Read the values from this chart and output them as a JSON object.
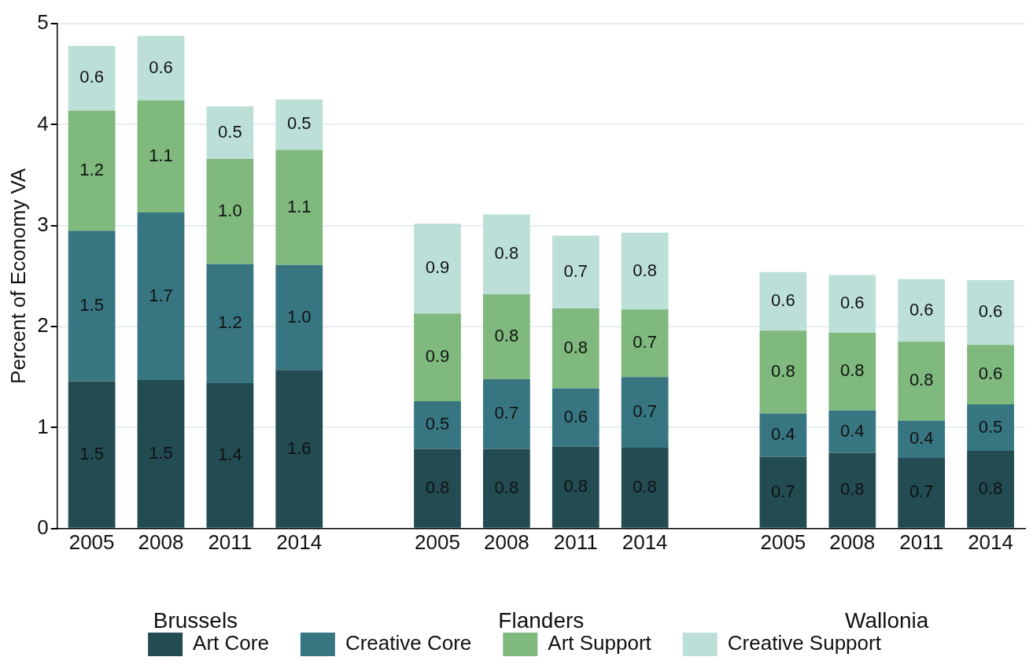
{
  "chart_data": {
    "type": "bar",
    "stacked": true,
    "ylabel": "Percent of Economy VA",
    "categories": [
      "2005",
      "2008",
      "2011",
      "2014",
      null,
      "2005",
      "2008",
      "2011",
      "2014",
      null,
      "2005",
      "2008",
      "2011",
      "2014"
    ],
    "ylim": [
      0,
      5
    ],
    "yticks": [
      0,
      1,
      2,
      3,
      4,
      5
    ],
    "grid": "y",
    "legend": "bottom",
    "annotations": [
      "Brussels",
      "Flanders",
      "Wallonia"
    ],
    "series": [
      {
        "name": "Art Core",
        "color": "#234b52",
        "values": [
          1.46,
          1.47,
          1.44,
          1.57,
          null,
          0.79,
          0.79,
          0.81,
          0.8,
          null,
          0.71,
          0.75,
          0.7,
          0.77
        ],
        "value_labels": [
          "1.5",
          "1.5",
          "1.4",
          "1.6",
          null,
          "0.8",
          "0.8",
          "0.8",
          "0.8",
          null,
          "0.7",
          "0.8",
          "0.7",
          "0.8"
        ]
      },
      {
        "name": "Creative Core",
        "color": "#377680",
        "values": [
          1.49,
          1.66,
          1.18,
          1.04,
          null,
          0.47,
          0.69,
          0.58,
          0.7,
          null,
          0.43,
          0.42,
          0.37,
          0.46
        ],
        "value_labels": [
          "1.5",
          "1.7",
          "1.2",
          "1.0",
          null,
          "0.5",
          "0.7",
          "0.6",
          "0.7",
          null,
          "0.4",
          "0.4",
          "0.4",
          "0.5"
        ]
      },
      {
        "name": "Art Support",
        "color": "#7fb97d",
        "values": [
          1.19,
          1.11,
          1.04,
          1.14,
          null,
          0.87,
          0.84,
          0.79,
          0.67,
          null,
          0.82,
          0.77,
          0.78,
          0.59
        ],
        "value_labels": [
          "1.2",
          "1.1",
          "1.0",
          "1.1",
          null,
          "0.9",
          "0.8",
          "0.8",
          "0.7",
          null,
          "0.8",
          "0.8",
          "0.8",
          "0.6"
        ]
      },
      {
        "name": "Creative Support",
        "color": "#bce0d8",
        "values": [
          0.64,
          0.64,
          0.52,
          0.5,
          null,
          0.89,
          0.79,
          0.72,
          0.76,
          null,
          0.58,
          0.57,
          0.62,
          0.64
        ],
        "value_labels": [
          "0.6",
          "0.6",
          "0.5",
          "0.5",
          null,
          "0.9",
          "0.8",
          "0.7",
          "0.8",
          null,
          "0.6",
          "0.6",
          "0.6",
          "0.6"
        ]
      }
    ]
  }
}
